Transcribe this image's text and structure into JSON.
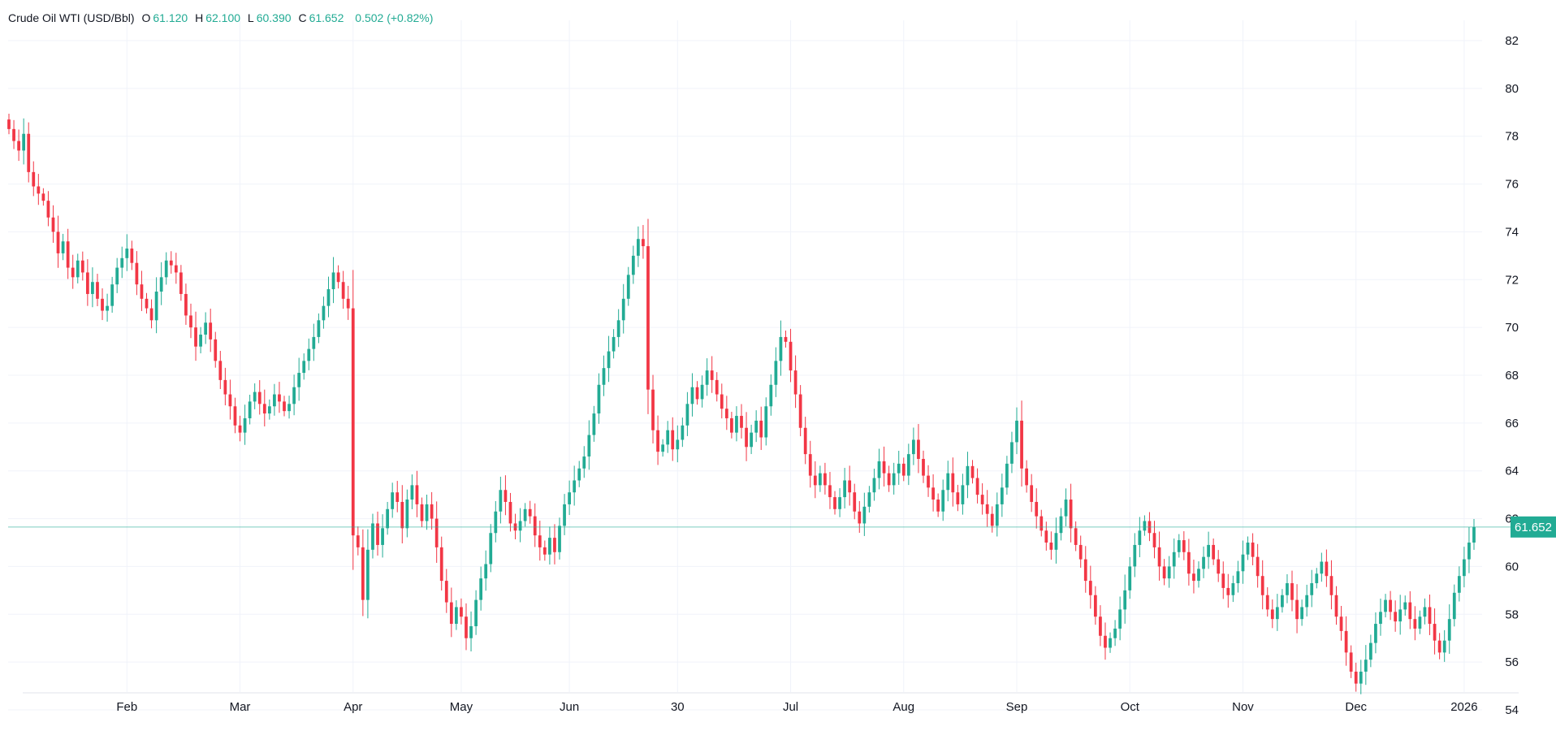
{
  "legend": {
    "name": "Crude Oil WTI (USD/Bbl)",
    "o_label": "O",
    "o_value": "61.120",
    "h_label": "H",
    "h_value": "62.100",
    "l_label": "L",
    "l_value": "60.390",
    "c_label": "C",
    "c_value": "61.652",
    "change": "0.502 (+0.82%)"
  },
  "colors": {
    "up": "#22ab94",
    "down": "#f23645",
    "grid": "#f0f3fa",
    "last": "#22ab94"
  },
  "chart_data": {
    "type": "candlestick",
    "title": "Crude Oil WTI (USD/Bbl)",
    "ylim": [
      54,
      83
    ],
    "y_ticks": [
      54,
      56,
      58,
      60,
      62,
      64,
      66,
      68,
      70,
      72,
      74,
      76,
      78,
      80,
      82
    ],
    "x_tick_labels": [
      "Feb",
      "Mar",
      "Apr",
      "May",
      "Jun",
      "30",
      "Jul",
      "Aug",
      "Sep",
      "Oct",
      "Nov",
      "Dec",
      "2026"
    ],
    "x_tick_index": [
      24,
      47,
      70,
      92,
      114,
      136,
      159,
      182,
      205,
      228,
      251,
      274,
      296
    ],
    "last_price": 61.652,
    "last_price_label": "61.652",
    "closes": [
      78.3,
      77.8,
      77.4,
      78.1,
      76.5,
      75.9,
      75.6,
      75.3,
      74.6,
      74.0,
      73.1,
      73.6,
      72.5,
      72.1,
      72.8,
      72.3,
      71.4,
      71.9,
      71.2,
      70.7,
      70.9,
      71.8,
      72.5,
      72.9,
      73.3,
      72.7,
      71.8,
      71.2,
      70.8,
      70.3,
      71.5,
      72.1,
      72.8,
      72.6,
      72.3,
      71.4,
      70.5,
      70.0,
      69.2,
      69.7,
      70.2,
      69.5,
      68.6,
      67.8,
      67.2,
      66.7,
      65.9,
      65.6,
      66.2,
      66.9,
      67.3,
      66.8,
      66.4,
      66.7,
      67.2,
      66.9,
      66.5,
      66.8,
      67.5,
      68.1,
      68.6,
      69.1,
      69.6,
      70.3,
      70.9,
      71.6,
      72.3,
      71.9,
      71.2,
      70.8,
      61.3,
      60.8,
      58.6,
      60.7,
      61.8,
      60.9,
      61.6,
      62.4,
      63.1,
      62.7,
      61.6,
      62.8,
      63.4,
      62.6,
      61.9,
      62.6,
      62.0,
      60.8,
      59.4,
      58.5,
      57.6,
      58.3,
      57.9,
      57.0,
      57.5,
      58.6,
      59.5,
      60.1,
      61.4,
      62.3,
      63.2,
      62.7,
      61.8,
      61.5,
      61.9,
      62.4,
      62.1,
      61.3,
      60.8,
      60.5,
      61.2,
      60.6,
      61.7,
      62.6,
      63.1,
      63.6,
      64.1,
      64.6,
      65.5,
      66.4,
      67.6,
      68.3,
      69.0,
      69.6,
      70.3,
      71.2,
      72.2,
      73.0,
      73.7,
      73.4,
      67.4,
      65.7,
      64.8,
      65.1,
      65.7,
      64.9,
      65.3,
      65.9,
      66.8,
      67.5,
      67.0,
      67.6,
      68.2,
      67.8,
      67.2,
      66.6,
      66.2,
      65.6,
      66.3,
      65.8,
      65.0,
      65.6,
      66.1,
      65.4,
      66.7,
      67.6,
      68.6,
      69.6,
      69.4,
      68.2,
      67.2,
      65.8,
      64.7,
      63.8,
      63.4,
      63.9,
      63.4,
      62.9,
      62.4,
      62.9,
      63.6,
      63.1,
      62.3,
      61.8,
      62.5,
      63.1,
      63.7,
      64.4,
      63.9,
      63.4,
      63.9,
      64.3,
      63.8,
      64.7,
      65.3,
      64.5,
      63.8,
      63.3,
      62.8,
      62.3,
      63.2,
      63.9,
      63.1,
      62.6,
      63.4,
      64.2,
      63.7,
      63.0,
      62.6,
      62.2,
      61.7,
      62.6,
      63.3,
      64.3,
      65.2,
      66.1,
      64.1,
      63.4,
      62.7,
      62.1,
      61.5,
      61.0,
      60.7,
      61.4,
      62.1,
      62.8,
      61.6,
      60.9,
      60.3,
      59.4,
      58.8,
      57.9,
      57.1,
      56.6,
      57.0,
      57.4,
      58.2,
      59.0,
      60.0,
      60.9,
      61.5,
      61.9,
      61.4,
      60.8,
      60.0,
      59.5,
      60.0,
      60.6,
      61.1,
      60.6,
      59.7,
      59.4,
      59.9,
      60.4,
      60.9,
      60.3,
      59.7,
      59.1,
      58.8,
      59.3,
      59.8,
      60.5,
      61.0,
      60.4,
      59.6,
      58.8,
      58.2,
      57.8,
      58.3,
      58.8,
      59.3,
      58.6,
      57.8,
      58.3,
      58.8,
      59.3,
      59.7,
      60.2,
      59.6,
      58.8,
      57.9,
      57.3,
      56.4,
      55.6,
      55.1,
      55.6,
      56.1,
      56.8,
      57.6,
      58.1,
      58.6,
      58.1,
      57.7,
      58.2,
      58.5,
      57.8,
      57.4,
      57.9,
      58.3,
      57.6,
      56.9,
      56.4,
      56.9,
      57.8,
      58.9,
      59.6,
      60.3,
      61.0,
      61.65
    ]
  }
}
